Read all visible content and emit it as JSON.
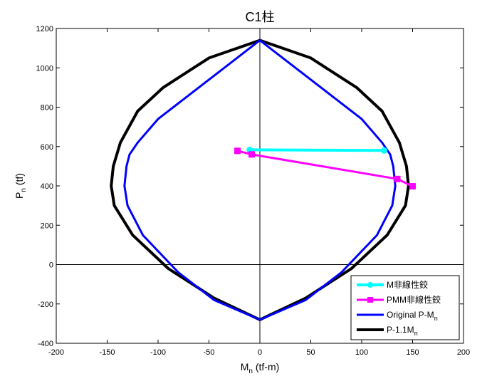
{
  "chart_data": {
    "type": "line",
    "title": "C1柱",
    "xlabel": {
      "main": "M",
      "sub": "n",
      "rest": " (tf-m)"
    },
    "ylabel": {
      "main": "P",
      "sub": "n",
      "rest": " (tf)"
    },
    "xlim": [
      -200,
      200
    ],
    "ylim": [
      -400,
      1200
    ],
    "xticks": [
      -200,
      -150,
      -100,
      -50,
      0,
      50,
      100,
      150,
      200
    ],
    "yticks": [
      -400,
      -200,
      0,
      200,
      400,
      600,
      800,
      1000,
      1200
    ],
    "grid": false,
    "zero_lines": true,
    "legend_position": "bottom-right",
    "series": [
      {
        "name": "M非線性鉸",
        "label_main": "M非線性鉸",
        "color": "#00ffff",
        "width": 4,
        "marker": "circle",
        "x": [
          -10,
          122
        ],
        "y": [
          583,
          580
        ]
      },
      {
        "name": "PMM非線性鉸",
        "label_main": "PMM非線性鉸",
        "color": "#ff00ff",
        "width": 3,
        "marker": "square",
        "x": [
          -22,
          -8,
          135,
          150
        ],
        "y": [
          578,
          560,
          435,
          398
        ]
      },
      {
        "name": "Original P-Mn",
        "label_main": "Original P-M",
        "label_sub": "n",
        "color": "#0000ff",
        "width": 3,
        "marker": "none",
        "x": [
          0,
          35,
          70,
          100,
          120,
          128,
          131,
          133,
          130,
          115,
          80,
          45,
          0,
          -45,
          -80,
          -115,
          -130,
          -133,
          -131,
          -128,
          -120,
          -100,
          -70,
          -35,
          0
        ],
        "y": [
          1140,
          1000,
          860,
          740,
          620,
          560,
          500,
          400,
          300,
          150,
          -40,
          -180,
          -280,
          -180,
          -40,
          150,
          300,
          400,
          500,
          560,
          620,
          740,
          860,
          1000,
          1140
        ]
      },
      {
        "name": "P-1.1Mn",
        "label_main": "P-1.1M",
        "label_sub": "n",
        "color": "#000000",
        "width": 4,
        "marker": "none",
        "x": [
          0,
          50,
          95,
          120,
          137,
          144,
          146,
          143,
          125,
          90,
          45,
          0,
          -45,
          -90,
          -125,
          -143,
          -146,
          -144,
          -137,
          -120,
          -95,
          -50,
          0
        ],
        "y": [
          1140,
          1050,
          900,
          780,
          620,
          500,
          400,
          300,
          150,
          -20,
          -170,
          -280,
          -170,
          -20,
          150,
          300,
          400,
          500,
          620,
          780,
          900,
          1050,
          1140
        ]
      }
    ]
  }
}
